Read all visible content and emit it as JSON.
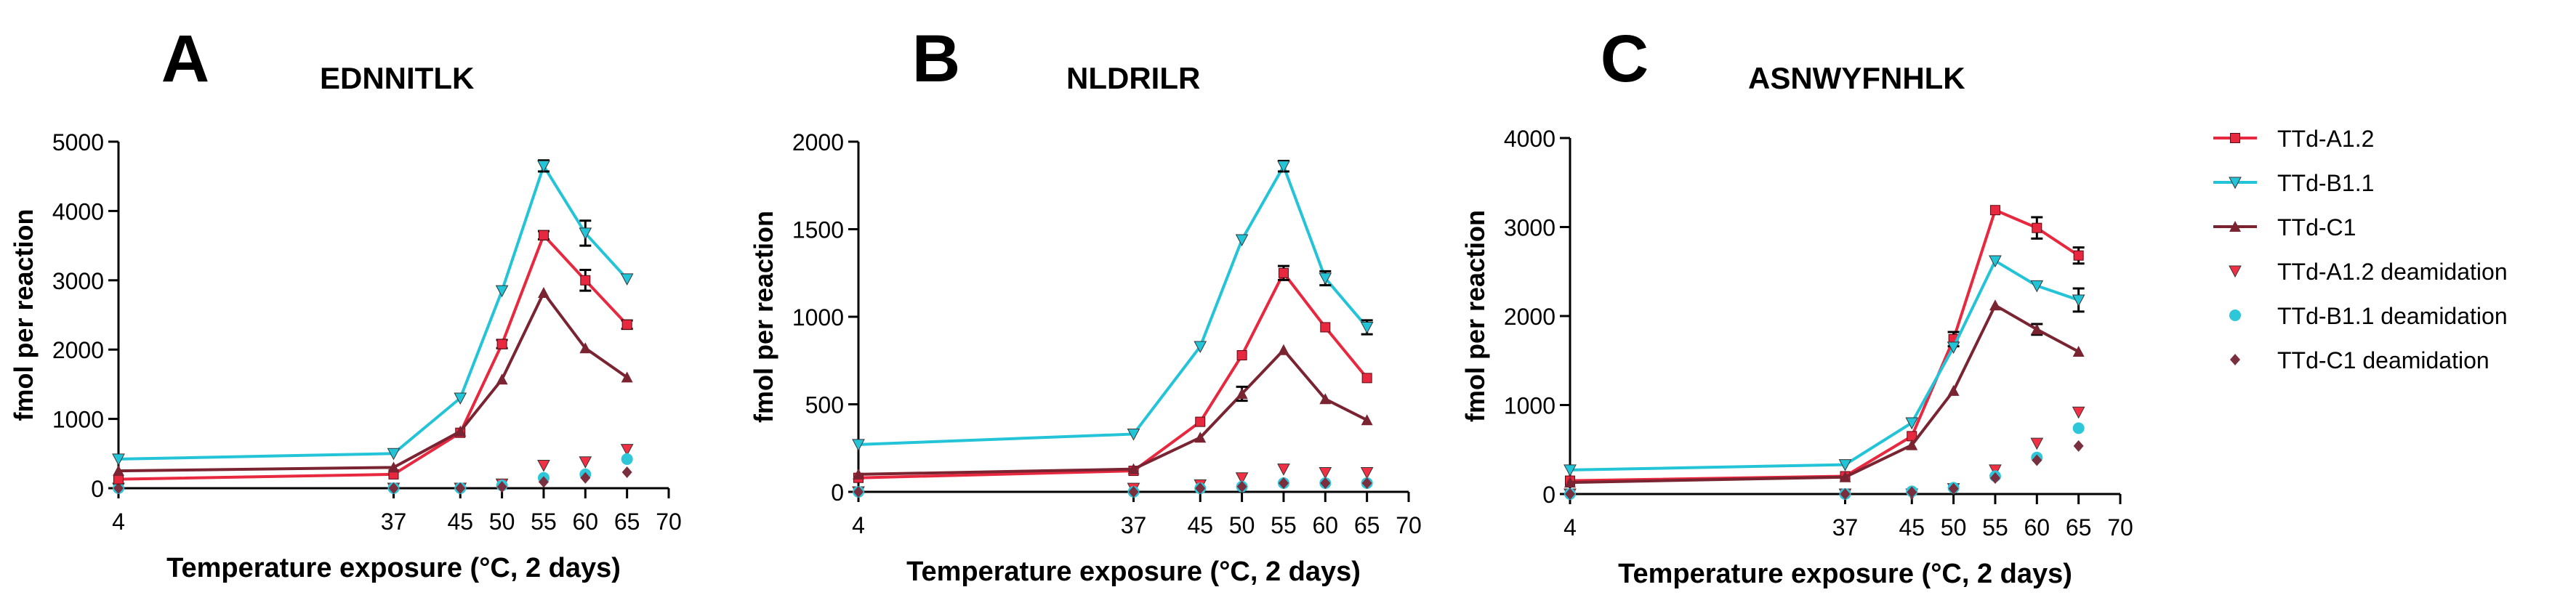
{
  "series_styles": [
    {
      "name": "TTd-A1.2",
      "color": "#e8283f",
      "marker": "square",
      "kind": "line"
    },
    {
      "name": "TTd-B1.1",
      "color": "#24c4d8",
      "marker": "triangle-down",
      "kind": "line"
    },
    {
      "name": "TTd-C1",
      "color": "#7a2432",
      "marker": "triangle-up",
      "kind": "line"
    },
    {
      "name": "TTd-A1.2 deamidation",
      "color": "#f23045",
      "marker": "triangle-down",
      "kind": "points"
    },
    {
      "name": "TTd-B1.1 deamidation",
      "color": "#2ec7da",
      "marker": "circle",
      "kind": "points"
    },
    {
      "name": "TTd-C1 deamidation",
      "color": "#7a2f3e",
      "marker": "diamond",
      "kind": "points"
    }
  ],
  "chart_data": [
    {
      "type": "line",
      "panel_label": "A",
      "title": "EDNNITLK",
      "xlabel": "Temperature exposure (°C, 2 days)",
      "ylabel": "fmol per reaction",
      "x": [
        4,
        37,
        45,
        50,
        55,
        60,
        65
      ],
      "xticks": [
        "4",
        "37",
        "45",
        "50",
        "55",
        "60",
        "65",
        "70"
      ],
      "xlim": [
        4,
        70
      ],
      "ylim": [
        0,
        5000
      ],
      "yticks": [
        "0",
        "1000",
        "2000",
        "3000",
        "4000",
        "5000"
      ],
      "series": [
        {
          "name": "TTd-A1.2",
          "values": [
            130,
            200,
            800,
            2080,
            3650,
            3000,
            2360
          ],
          "errors": [
            0,
            0,
            0,
            60,
            60,
            150,
            60
          ]
        },
        {
          "name": "TTd-B1.1",
          "values": [
            420,
            500,
            1300,
            2850,
            4650,
            3680,
            3020
          ],
          "errors": [
            0,
            0,
            0,
            0,
            80,
            180,
            0
          ]
        },
        {
          "name": "TTd-C1",
          "values": [
            250,
            300,
            820,
            1570,
            2820,
            2020,
            1600
          ],
          "errors": [
            0,
            0,
            0,
            0,
            0,
            0,
            0
          ]
        },
        {
          "name": "TTd-A1.2 deamidation",
          "values": [
            0,
            0,
            0,
            60,
            330,
            380,
            560
          ],
          "errors": [
            0,
            0,
            0,
            0,
            0,
            0,
            0
          ]
        },
        {
          "name": "TTd-B1.1 deamidation",
          "values": [
            0,
            0,
            0,
            40,
            150,
            200,
            420
          ],
          "errors": [
            0,
            0,
            0,
            0,
            0,
            0,
            0
          ]
        },
        {
          "name": "TTd-C1 deamidation",
          "values": [
            0,
            0,
            0,
            20,
            90,
            150,
            230
          ],
          "errors": [
            0,
            0,
            0,
            0,
            0,
            0,
            0
          ]
        }
      ]
    },
    {
      "type": "line",
      "panel_label": "B",
      "title": "NLDRILR",
      "xlabel": "Temperature exposure (°C, 2 days)",
      "ylabel": "fmol per reaction",
      "x": [
        4,
        37,
        45,
        50,
        55,
        60,
        65
      ],
      "xticks": [
        "4",
        "37",
        "45",
        "50",
        "55",
        "60",
        "65",
        "70"
      ],
      "xlim": [
        4,
        70
      ],
      "ylim": [
        0,
        2000
      ],
      "yticks": [
        "0",
        "500",
        "1000",
        "1500",
        "2000"
      ],
      "series": [
        {
          "name": "TTd-A1.2",
          "values": [
            80,
            120,
            400,
            780,
            1250,
            940,
            650
          ],
          "errors": [
            0,
            0,
            0,
            0,
            40,
            0,
            0
          ]
        },
        {
          "name": "TTd-B1.1",
          "values": [
            270,
            330,
            830,
            1440,
            1860,
            1220,
            940
          ],
          "errors": [
            0,
            0,
            0,
            0,
            30,
            40,
            40
          ]
        },
        {
          "name": "TTd-C1",
          "values": [
            100,
            130,
            310,
            560,
            810,
            530,
            410
          ],
          "errors": [
            0,
            0,
            0,
            40,
            0,
            0,
            0
          ]
        },
        {
          "name": "TTd-A1.2 deamidation",
          "values": [
            0,
            20,
            40,
            80,
            130,
            110,
            110
          ],
          "errors": [
            0,
            0,
            0,
            0,
            0,
            0,
            0
          ]
        },
        {
          "name": "TTd-B1.1 deamidation",
          "values": [
            0,
            0,
            20,
            30,
            50,
            50,
            50
          ],
          "errors": [
            0,
            0,
            0,
            0,
            0,
            0,
            0
          ]
        },
        {
          "name": "TTd-C1 deamidation",
          "values": [
            0,
            0,
            20,
            30,
            50,
            50,
            50
          ],
          "errors": [
            0,
            0,
            0,
            0,
            0,
            0,
            0
          ]
        }
      ]
    },
    {
      "type": "line",
      "panel_label": "C",
      "title": "ASNWYFNHLK",
      "xlabel": "Temperature exposure (°C, 2 days)",
      "ylabel": "fmol per reaction",
      "x": [
        4,
        37,
        45,
        50,
        55,
        60,
        65
      ],
      "xticks": [
        "4",
        "37",
        "45",
        "50",
        "55",
        "60",
        "65",
        "70"
      ],
      "xlim": [
        4,
        70
      ],
      "ylim": [
        0,
        4000
      ],
      "yticks": [
        "0",
        "1000",
        "2000",
        "3000",
        "4000"
      ],
      "series": [
        {
          "name": "TTd-A1.2",
          "values": [
            150,
            200,
            650,
            1740,
            3190,
            2990,
            2680
          ],
          "errors": [
            0,
            0,
            0,
            80,
            0,
            120,
            90
          ]
        },
        {
          "name": "TTd-B1.1",
          "values": [
            270,
            330,
            800,
            1650,
            2620,
            2340,
            2180
          ],
          "errors": [
            0,
            0,
            0,
            0,
            0,
            0,
            130
          ]
        },
        {
          "name": "TTd-C1",
          "values": [
            130,
            190,
            550,
            1160,
            2120,
            1850,
            1600
          ],
          "errors": [
            0,
            0,
            0,
            0,
            0,
            60,
            0
          ]
        },
        {
          "name": "TTd-A1.2 deamidation",
          "values": [
            0,
            0,
            0,
            60,
            270,
            570,
            920
          ],
          "errors": [
            0,
            0,
            0,
            0,
            0,
            0,
            0
          ]
        },
        {
          "name": "TTd-B1.1 deamidation",
          "values": [
            0,
            0,
            30,
            70,
            200,
            410,
            740
          ],
          "errors": [
            0,
            0,
            0,
            0,
            0,
            0,
            0
          ]
        },
        {
          "name": "TTd-C1 deamidation",
          "values": [
            0,
            0,
            20,
            60,
            180,
            380,
            540
          ],
          "errors": [
            0,
            0,
            0,
            0,
            0,
            0,
            0
          ]
        }
      ]
    }
  ]
}
